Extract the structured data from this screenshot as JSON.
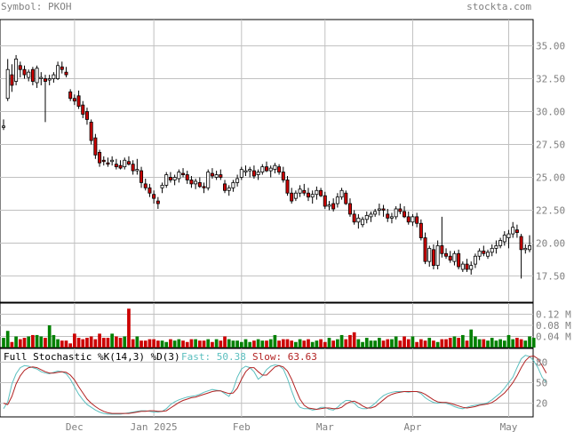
{
  "header": {
    "symbol": "Symbol: PKOH",
    "site": "stockta.com"
  },
  "colors": {
    "up_fill": "#ffffff",
    "down_fill": "#cc0000",
    "vol_up": "#008000",
    "vol_down": "#cc0000",
    "grid": "#c0c0c0",
    "fast": "#5bbfbf",
    "slow": "#b22222",
    "label_gray": "#808080"
  },
  "indicator": {
    "title": "Full Stochastic %K(14,3) %D(3)",
    "fast_label": "Fast: 50.38",
    "slow_label": "Slow: 63.63"
  },
  "chart_data": [
    {
      "type": "candlestick",
      "title": "Symbol: PKOH",
      "ylim": [
        15.5,
        37
      ],
      "yticks": [
        "35.00",
        "32.50",
        "30.00",
        "27.50",
        "25.00",
        "22.50",
        "20.00",
        "17.50"
      ],
      "ytick_values": [
        35,
        32.5,
        30,
        27.5,
        25,
        22.5,
        20,
        17.5
      ],
      "xticks": [
        "Dec",
        "Jan 2025",
        "Feb",
        "Mar",
        "Apr",
        "May"
      ],
      "xtick_index": [
        17,
        36,
        57,
        77,
        98,
        121
      ],
      "grid": true,
      "candles": [
        [
          28.8,
          29.4,
          28.6,
          28.9
        ],
        [
          31.0,
          34.0,
          30.8,
          33.2
        ],
        [
          32.8,
          33.6,
          31.5,
          32.0
        ],
        [
          32.3,
          34.3,
          32.0,
          34.0
        ],
        [
          33.5,
          33.8,
          32.6,
          33.2
        ],
        [
          33.2,
          33.5,
          32.5,
          32.8
        ],
        [
          32.6,
          33.2,
          32.3,
          33.0
        ],
        [
          33.2,
          33.4,
          32.0,
          32.3
        ],
        [
          32.2,
          33.5,
          31.8,
          33.3
        ],
        [
          32.5,
          33.0,
          32.0,
          32.6
        ],
        [
          32.5,
          32.8,
          29.2,
          32.3
        ],
        [
          32.4,
          32.8,
          32.0,
          32.5
        ],
        [
          32.5,
          33.0,
          32.2,
          32.8
        ],
        [
          32.5,
          33.8,
          32.4,
          33.5
        ],
        [
          33.4,
          33.8,
          32.9,
          33.2
        ],
        [
          33.0,
          33.4,
          32.6,
          32.8
        ],
        [
          31.5,
          31.7,
          30.8,
          31.0
        ],
        [
          31.0,
          31.3,
          30.5,
          30.8
        ],
        [
          31.2,
          31.6,
          30.2,
          30.4
        ],
        [
          30.5,
          30.8,
          29.5,
          29.8
        ],
        [
          30.0,
          30.3,
          29.0,
          29.4
        ],
        [
          29.2,
          29.4,
          27.5,
          27.8
        ],
        [
          28.0,
          28.3,
          26.4,
          26.7
        ],
        [
          26.9,
          27.1,
          25.8,
          26.1
        ],
        [
          26.3,
          26.6,
          25.9,
          26.2
        ],
        [
          26.1,
          26.5,
          25.8,
          26.0
        ],
        [
          26.2,
          26.6,
          25.9,
          26.3
        ],
        [
          26.0,
          26.4,
          25.6,
          25.8
        ],
        [
          25.9,
          26.3,
          25.6,
          25.7
        ],
        [
          25.8,
          26.5,
          25.6,
          26.3
        ],
        [
          26.2,
          26.6,
          25.9,
          26.0
        ],
        [
          26.0,
          26.3,
          25.2,
          25.5
        ],
        [
          25.5,
          26.4,
          25.2,
          25.6
        ],
        [
          25.5,
          25.8,
          24.2,
          24.6
        ],
        [
          24.5,
          24.9,
          24.0,
          24.2
        ],
        [
          24.2,
          24.5,
          23.5,
          23.8
        ],
        [
          23.7,
          24.0,
          23.0,
          23.4
        ],
        [
          23.2,
          23.5,
          22.6,
          23.0
        ],
        [
          24.2,
          24.6,
          23.8,
          24.4
        ],
        [
          24.4,
          25.4,
          24.2,
          25.2
        ],
        [
          25.0,
          25.4,
          24.6,
          24.8
        ],
        [
          24.8,
          25.2,
          24.4,
          25.0
        ],
        [
          24.9,
          25.6,
          24.6,
          25.4
        ],
        [
          25.3,
          25.7,
          25.0,
          25.2
        ],
        [
          25.2,
          25.5,
          24.5,
          24.8
        ],
        [
          24.8,
          25.1,
          24.2,
          24.5
        ],
        [
          24.5,
          24.9,
          24.1,
          24.7
        ],
        [
          24.6,
          25.0,
          24.2,
          24.3
        ],
        [
          24.3,
          24.6,
          23.8,
          24.2
        ],
        [
          24.2,
          25.6,
          24.0,
          25.4
        ],
        [
          25.3,
          25.7,
          24.9,
          25.1
        ],
        [
          25.0,
          25.5,
          24.8,
          25.2
        ],
        [
          25.2,
          25.6,
          24.8,
          25.0
        ],
        [
          24.5,
          24.8,
          23.8,
          24.0
        ],
        [
          24.0,
          24.4,
          23.6,
          24.2
        ],
        [
          24.2,
          24.8,
          23.9,
          24.6
        ],
        [
          24.6,
          25.2,
          24.3,
          24.9
        ],
        [
          25.0,
          25.8,
          24.8,
          25.6
        ],
        [
          25.4,
          25.9,
          25.1,
          25.5
        ],
        [
          25.5,
          25.8,
          25.0,
          25.6
        ],
        [
          25.5,
          25.9,
          24.9,
          25.1
        ],
        [
          25.2,
          25.6,
          24.8,
          25.4
        ],
        [
          25.4,
          26.0,
          25.2,
          25.8
        ],
        [
          25.8,
          26.2,
          25.4,
          25.5
        ],
        [
          25.5,
          25.9,
          25.0,
          25.7
        ],
        [
          25.6,
          26.1,
          25.3,
          25.9
        ],
        [
          25.8,
          26.0,
          25.2,
          25.4
        ],
        [
          25.4,
          25.8,
          24.6,
          24.8
        ],
        [
          24.8,
          25.1,
          23.6,
          23.8
        ],
        [
          23.8,
          24.2,
          23.0,
          23.2
        ],
        [
          23.4,
          24.0,
          23.2,
          23.8
        ],
        [
          23.8,
          24.4,
          23.5,
          24.1
        ],
        [
          24.0,
          24.5,
          23.6,
          23.8
        ],
        [
          23.8,
          24.2,
          23.2,
          23.5
        ],
        [
          23.5,
          24.0,
          23.0,
          23.7
        ],
        [
          23.7,
          24.3,
          23.3,
          24.0
        ],
        [
          24.0,
          24.2,
          23.5,
          23.6
        ],
        [
          23.6,
          23.9,
          22.6,
          22.8
        ],
        [
          22.8,
          23.2,
          22.5,
          22.9
        ],
        [
          23.0,
          23.4,
          22.4,
          22.6
        ],
        [
          23.0,
          23.8,
          22.7,
          23.5
        ],
        [
          23.5,
          24.2,
          23.3,
          24.0
        ],
        [
          23.8,
          24.0,
          22.9,
          23.0
        ],
        [
          23.0,
          23.4,
          22.0,
          22.2
        ],
        [
          22.2,
          22.5,
          21.4,
          21.6
        ],
        [
          21.6,
          22.2,
          21.1,
          21.9
        ],
        [
          21.4,
          22.0,
          21.2,
          21.8
        ],
        [
          21.8,
          22.4,
          21.5,
          22.1
        ],
        [
          22.0,
          22.4,
          21.6,
          22.2
        ],
        [
          22.2,
          22.6,
          22.0,
          22.4
        ],
        [
          22.5,
          23.0,
          22.1,
          22.6
        ],
        [
          22.6,
          22.9,
          22.0,
          22.5
        ],
        [
          22.2,
          22.6,
          21.6,
          21.9
        ],
        [
          21.9,
          22.3,
          21.5,
          22.0
        ],
        [
          22.0,
          22.8,
          21.8,
          22.6
        ],
        [
          22.6,
          23.0,
          22.2,
          22.4
        ],
        [
          22.4,
          22.8,
          21.9,
          22.0
        ],
        [
          22.0,
          22.4,
          21.4,
          21.6
        ],
        [
          21.6,
          22.2,
          21.3,
          22.0
        ],
        [
          22.0,
          22.3,
          21.2,
          21.5
        ],
        [
          21.5,
          21.8,
          20.2,
          20.4
        ],
        [
          20.4,
          20.8,
          18.4,
          18.6
        ],
        [
          18.6,
          19.8,
          18.2,
          19.6
        ],
        [
          19.5,
          19.9,
          18.0,
          18.3
        ],
        [
          18.3,
          20.2,
          18.0,
          19.8
        ],
        [
          19.8,
          22.0,
          18.9,
          19.2
        ],
        [
          19.2,
          19.6,
          18.8,
          19.0
        ],
        [
          19.0,
          19.4,
          18.5,
          18.7
        ],
        [
          18.6,
          19.4,
          18.3,
          19.2
        ],
        [
          19.2,
          19.5,
          18.0,
          18.2
        ],
        [
          18.0,
          18.6,
          17.8,
          18.4
        ],
        [
          18.4,
          18.8,
          17.8,
          18.0
        ],
        [
          18.0,
          18.6,
          17.6,
          18.3
        ],
        [
          18.4,
          19.2,
          18.1,
          19.0
        ],
        [
          19.0,
          19.6,
          18.7,
          19.4
        ],
        [
          19.4,
          19.8,
          19.0,
          19.2
        ],
        [
          19.0,
          19.5,
          18.8,
          19.3
        ],
        [
          19.3,
          19.9,
          19.0,
          19.6
        ],
        [
          19.6,
          20.2,
          19.2,
          19.8
        ],
        [
          19.8,
          20.4,
          19.6,
          20.2
        ],
        [
          20.1,
          20.9,
          19.8,
          20.6
        ],
        [
          20.4,
          21.0,
          19.6,
          20.7
        ],
        [
          20.7,
          21.6,
          20.4,
          21.2
        ],
        [
          21.0,
          21.4,
          20.4,
          20.8
        ],
        [
          20.5,
          20.7,
          17.3,
          19.5
        ],
        [
          19.5,
          19.9,
          19.2,
          19.6
        ],
        [
          19.5,
          20.6,
          19.3,
          19.8
        ]
      ]
    },
    {
      "type": "bar",
      "title": "Volume",
      "yticks": [
        "0.12 M",
        "0.08 M",
        "0.04 M"
      ],
      "ytick_values": [
        0.12,
        0.08,
        0.04
      ],
      "ylim": [
        0,
        0.16
      ],
      "values": [
        0.035,
        0.06,
        0.02,
        0.04,
        0.03,
        0.035,
        0.04,
        0.045,
        0.045,
        0.04,
        0.035,
        0.08,
        0.045,
        0.03,
        0.025,
        0.025,
        0.015,
        0.05,
        0.035,
        0.03,
        0.035,
        0.04,
        0.03,
        0.05,
        0.035,
        0.035,
        0.05,
        0.04,
        0.035,
        0.04,
        0.14,
        0.03,
        0.04,
        0.025,
        0.025,
        0.03,
        0.03,
        0.025,
        0.025,
        0.02,
        0.03,
        0.025,
        0.03,
        0.025,
        0.02,
        0.03,
        0.03,
        0.025,
        0.025,
        0.03,
        0.02,
        0.03,
        0.025,
        0.04,
        0.03,
        0.025,
        0.025,
        0.02,
        0.03,
        0.02,
        0.025,
        0.03,
        0.025,
        0.025,
        0.03,
        0.045,
        0.025,
        0.03,
        0.03,
        0.025,
        0.02,
        0.03,
        0.025,
        0.03,
        0.02,
        0.025,
        0.03,
        0.02,
        0.035,
        0.025,
        0.03,
        0.045,
        0.03,
        0.045,
        0.055,
        0.03,
        0.02,
        0.035,
        0.025,
        0.025,
        0.035,
        0.025,
        0.03,
        0.03,
        0.04,
        0.025,
        0.04,
        0.03,
        0.04,
        0.02,
        0.03,
        0.025,
        0.035,
        0.025,
        0.02,
        0.03,
        0.03,
        0.035,
        0.04,
        0.035,
        0.045,
        0.025,
        0.065,
        0.04,
        0.03,
        0.03,
        0.025,
        0.035,
        0.025,
        0.03,
        0.025,
        0.045,
        0.03,
        0.035,
        0.03,
        0.025,
        0.04,
        0.035
      ]
    },
    {
      "type": "line",
      "title": "Full Stochastic %K(14,3) %D(3)",
      "ylim": [
        0,
        100
      ],
      "yticks": [
        "80",
        "50",
        "20"
      ],
      "ytick_values": [
        80,
        50,
        20
      ],
      "series": [
        {
          "name": "Fast",
          "values": [
            12,
            22,
            48,
            63,
            72,
            75,
            74,
            72,
            70,
            66,
            64,
            63,
            65,
            67,
            66,
            63,
            55,
            44,
            33,
            25,
            18,
            14,
            10,
            7,
            5,
            4,
            4,
            4,
            4,
            5,
            6,
            7,
            8,
            9,
            9,
            8,
            7,
            7,
            8,
            12,
            18,
            22,
            25,
            27,
            29,
            30,
            31,
            33,
            36,
            38,
            40,
            39,
            38,
            34,
            30,
            40,
            58,
            70,
            74,
            72,
            66,
            55,
            60,
            69,
            74,
            76,
            75,
            70,
            56,
            38,
            22,
            14,
            12,
            12,
            10,
            11,
            14,
            14,
            11,
            10,
            14,
            20,
            24,
            24,
            20,
            14,
            12,
            12,
            15,
            20,
            26,
            31,
            34,
            36,
            37,
            37,
            37,
            36,
            37,
            37,
            34,
            28,
            24,
            21,
            20,
            21,
            20,
            18,
            15,
            13,
            12,
            14,
            16,
            17,
            18,
            19,
            21,
            25,
            30,
            35,
            42,
            50,
            58,
            72,
            85,
            90,
            88,
            82,
            72,
            58,
            50
          ]
        },
        {
          "name": "Slow",
          "values": [
            20,
            18,
            30,
            48,
            60,
            68,
            72,
            73,
            72,
            69,
            66,
            64,
            64,
            65,
            66,
            65,
            61,
            54,
            44,
            35,
            26,
            20,
            15,
            11,
            8,
            6,
            5,
            5,
            5,
            5,
            5,
            6,
            7,
            8,
            8,
            9,
            9,
            8,
            8,
            9,
            13,
            17,
            21,
            24,
            26,
            28,
            29,
            31,
            33,
            35,
            37,
            38,
            38,
            36,
            34,
            35,
            42,
            55,
            66,
            72,
            72,
            66,
            61,
            61,
            67,
            73,
            75,
            73,
            67,
            55,
            40,
            26,
            17,
            13,
            12,
            11,
            12,
            13,
            13,
            12,
            12,
            14,
            19,
            22,
            23,
            20,
            16,
            13,
            13,
            15,
            20,
            25,
            30,
            33,
            35,
            36,
            37,
            37,
            37,
            37,
            36,
            33,
            29,
            25,
            22,
            21,
            21,
            20,
            18,
            16,
            14,
            13,
            14,
            15,
            17,
            18,
            19,
            21,
            25,
            30,
            35,
            42,
            50,
            60,
            72,
            82,
            88,
            89,
            85,
            75,
            64
          ]
        }
      ]
    }
  ]
}
